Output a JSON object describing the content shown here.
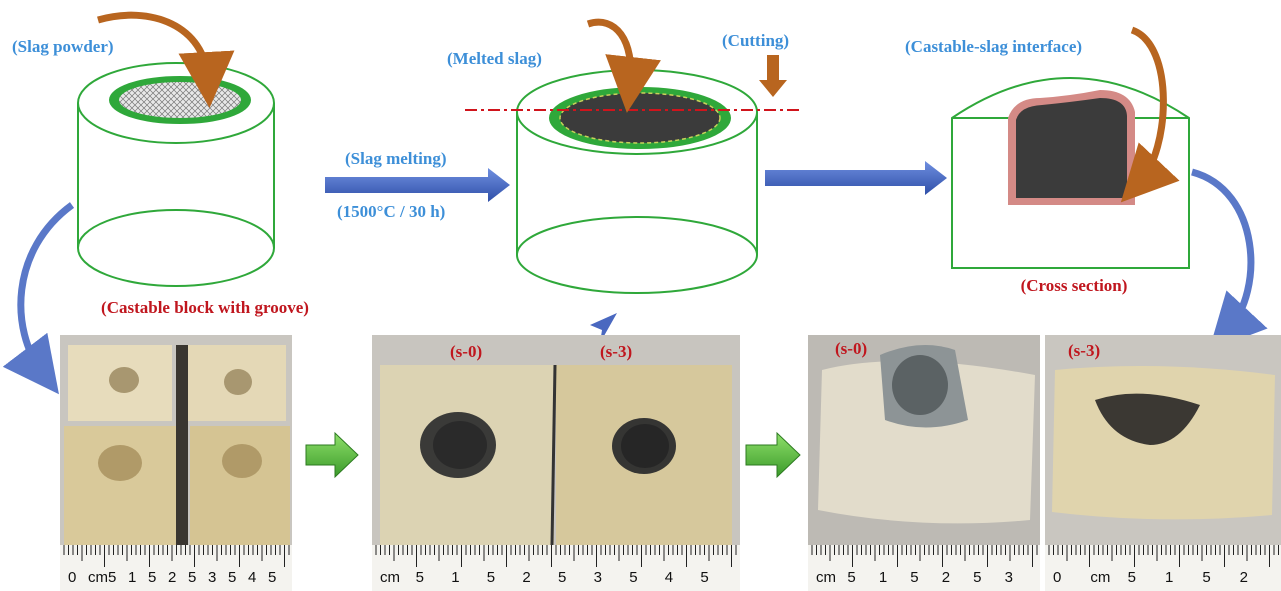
{
  "diagram": {
    "labels": {
      "slag_powder": "(Slag powder)",
      "slag_melting": "(Slag melting)",
      "condition": "(1500°C / 30 h)",
      "melted_slag": "(Melted slag)",
      "cutting": "(Cutting)",
      "interface": "(Castable-slag interface)",
      "cross_section": "(Cross section)",
      "castable_block": "(Castable block with groove)"
    },
    "photos": [
      {
        "tags": [],
        "ruler": [
          "0",
          "cm",
          "5",
          "1",
          "5",
          "2",
          "5",
          "3",
          "5",
          "4",
          "5"
        ]
      },
      {
        "tags": [
          "(s-0)",
          "(s-3)"
        ],
        "ruler": [
          "cm",
          "5",
          "1",
          "5",
          "2",
          "5",
          "3",
          "5",
          "4",
          "5"
        ]
      },
      {
        "tags": [
          "(s-0)"
        ],
        "ruler": [
          "cm",
          "5",
          "1",
          "5",
          "2",
          "5",
          "3"
        ]
      },
      {
        "tags": [
          "(s-3)"
        ],
        "ruler": [
          "0",
          "cm",
          "5",
          "1",
          "5",
          "2"
        ]
      }
    ]
  }
}
